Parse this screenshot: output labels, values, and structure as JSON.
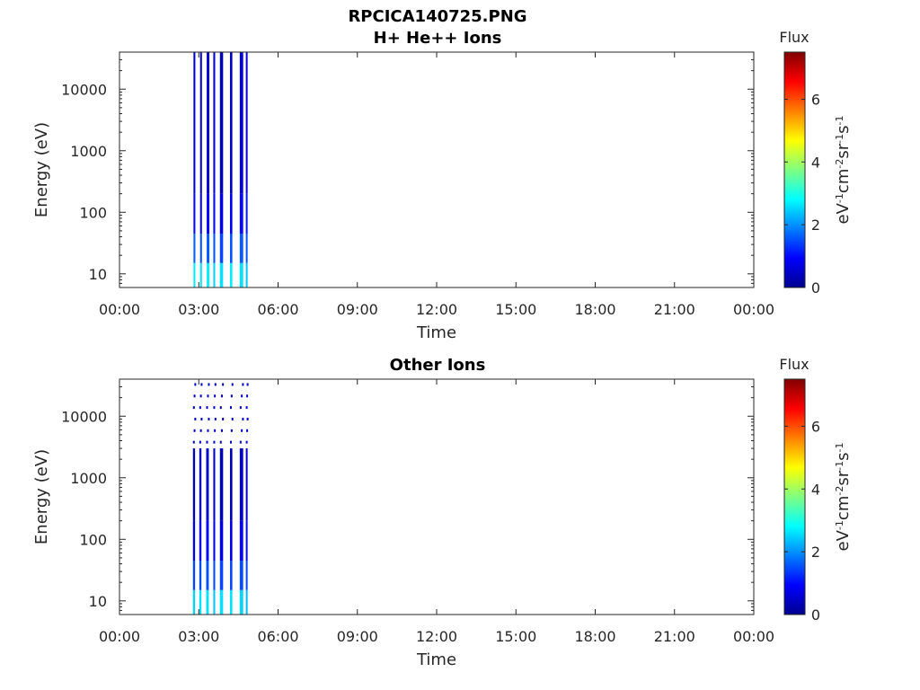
{
  "figure_title": "RPCICA140725.PNG",
  "chart_data": [
    {
      "type": "heatmap",
      "title": "H+ He++ Ions",
      "xlabel": "Time",
      "ylabel": "Energy (eV)",
      "x_ticks": [
        "00:00",
        "03:00",
        "06:00",
        "09:00",
        "12:00",
        "15:00",
        "18:00",
        "21:00",
        "00:00"
      ],
      "x_range_hours": [
        0,
        24
      ],
      "y_scale": "log",
      "y_ticks": [
        "10",
        "100",
        "1000",
        "10000"
      ],
      "y_tick_values": [
        10,
        100,
        1000,
        10000
      ],
      "y_range": [
        6,
        40000
      ],
      "colorbar": {
        "title": "Flux",
        "label": "eV-1cm-2sr-1s-1",
        "ticks": [
          "0",
          "2",
          "4",
          "6"
        ],
        "tick_values": [
          0,
          2,
          4,
          6
        ],
        "range": [
          0,
          7.5
        ],
        "colormap": "jet"
      },
      "stripes": [
        {
          "t_start": 2.8,
          "t_end": 2.87,
          "base_flux": 0.6,
          "low_energy_flux": 2.7
        },
        {
          "t_start": 3.05,
          "t_end": 3.12,
          "base_flux": 0.5,
          "low_energy_flux": 2.6
        },
        {
          "t_start": 3.3,
          "t_end": 3.4,
          "base_flux": 0.5,
          "low_energy_flux": 2.7
        },
        {
          "t_start": 3.55,
          "t_end": 3.62,
          "base_flux": 0.6,
          "low_energy_flux": 2.5
        },
        {
          "t_start": 3.8,
          "t_end": 3.92,
          "base_flux": 0.3,
          "low_energy_flux": 2.6
        },
        {
          "t_start": 4.18,
          "t_end": 4.27,
          "base_flux": 0.4,
          "low_energy_flux": 2.7
        },
        {
          "t_start": 4.55,
          "t_end": 4.68,
          "base_flux": 0.6,
          "low_energy_flux": 2.6
        },
        {
          "t_start": 4.78,
          "t_end": 4.83,
          "base_flux": 0.7,
          "low_energy_flux": 2.4
        }
      ]
    },
    {
      "type": "heatmap",
      "title": "Other Ions",
      "xlabel": "Time",
      "ylabel": "Energy (eV)",
      "x_ticks": [
        "00:00",
        "03:00",
        "06:00",
        "09:00",
        "12:00",
        "15:00",
        "18:00",
        "21:00",
        "00:00"
      ],
      "x_range_hours": [
        0,
        24
      ],
      "y_scale": "log",
      "y_ticks": [
        "10",
        "100",
        "1000",
        "10000"
      ],
      "y_tick_values": [
        10,
        100,
        1000,
        10000
      ],
      "y_range": [
        6,
        40000
      ],
      "colorbar": {
        "title": "Flux",
        "label": "eV-1cm-2sr-1s-1",
        "ticks": [
          "0",
          "2",
          "4",
          "6"
        ],
        "tick_values": [
          0,
          2,
          4,
          6
        ],
        "range": [
          0,
          7.5
        ],
        "colormap": "jet"
      },
      "stripes": [
        {
          "t_start": 2.78,
          "t_end": 2.86,
          "base_flux": 0.4,
          "low_energy_flux": 2.5,
          "top_energy": 3000
        },
        {
          "t_start": 3.02,
          "t_end": 3.1,
          "base_flux": 0.4,
          "low_energy_flux": 2.6,
          "top_energy": 3000
        },
        {
          "t_start": 3.28,
          "t_end": 3.38,
          "base_flux": 0.5,
          "low_energy_flux": 2.6,
          "top_energy": 3000
        },
        {
          "t_start": 3.55,
          "t_end": 3.62,
          "base_flux": 0.5,
          "low_energy_flux": 2.4,
          "top_energy": 3000
        },
        {
          "t_start": 3.8,
          "t_end": 3.92,
          "base_flux": 0.3,
          "low_energy_flux": 2.6,
          "top_energy": 3000
        },
        {
          "t_start": 4.18,
          "t_end": 4.27,
          "base_flux": 0.3,
          "low_energy_flux": 2.6,
          "top_energy": 3000
        },
        {
          "t_start": 4.55,
          "t_end": 4.68,
          "base_flux": 0.5,
          "low_energy_flux": 2.5,
          "top_energy": 3000
        },
        {
          "t_start": 4.78,
          "t_end": 4.83,
          "base_flux": 0.6,
          "low_energy_flux": 2.3,
          "top_energy": 3000
        }
      ]
    }
  ]
}
